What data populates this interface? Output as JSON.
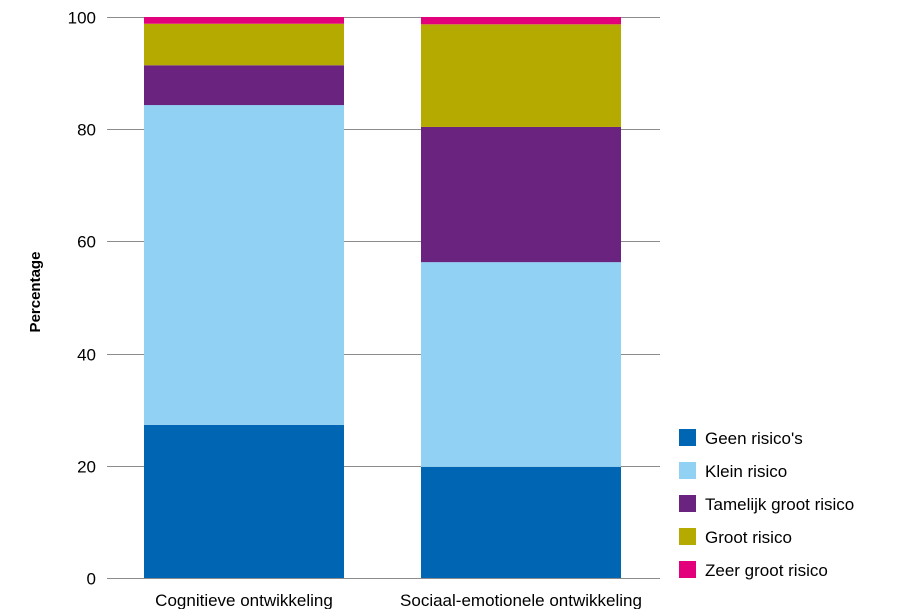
{
  "chart_data": {
    "type": "bar",
    "stacked": true,
    "categories": [
      "Cognitieve ontwikkeling",
      "Sociaal-emotionele ontwikkeling"
    ],
    "series": [
      {
        "name": "Geen risico's",
        "color": "#0066b3",
        "values": [
          27.3,
          19.8
        ]
      },
      {
        "name": "Klein risico",
        "color": "#91d1f3",
        "values": [
          57.0,
          36.5
        ]
      },
      {
        "name": "Tamelijk groot risico",
        "color": "#6a247f",
        "values": [
          7.1,
          24.1
        ]
      },
      {
        "name": "Groot risico",
        "color": "#b5aa00",
        "values": [
          7.4,
          18.3
        ]
      },
      {
        "name": "Zeer groot risico",
        "color": "#e3007b",
        "values": [
          1.2,
          1.3
        ]
      }
    ],
    "title": "",
    "xlabel": "",
    "ylabel": "Percentage",
    "ylim": [
      0,
      100
    ],
    "yticks": [
      0,
      20,
      40,
      60,
      80,
      100
    ],
    "grid": true,
    "legend_position": "bottom-right"
  }
}
